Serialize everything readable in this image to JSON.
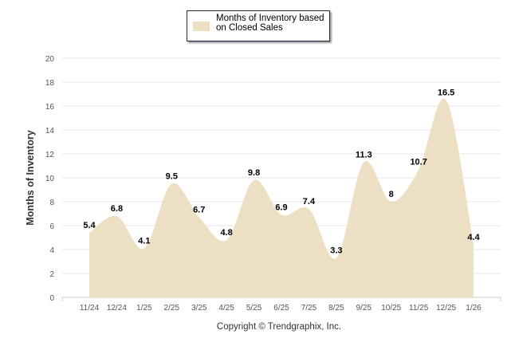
{
  "chart_data": {
    "type": "area",
    "title": "",
    "legend": {
      "label": "Months of Inventory based on Closed Sales",
      "placement": "top-center"
    },
    "categories": [
      "11/24",
      "12/24",
      "1/25",
      "2/25",
      "3/25",
      "4/25",
      "5/25",
      "6/25",
      "7/25",
      "8/25",
      "9/25",
      "10/25",
      "11/25",
      "12/25",
      "1/26"
    ],
    "series": [
      {
        "name": "Months of Inventory based on Closed Sales",
        "values": [
          5.4,
          6.8,
          4.1,
          9.5,
          6.7,
          4.8,
          9.8,
          6.9,
          7.4,
          3.3,
          11.3,
          8,
          10.7,
          16.5,
          4.4
        ]
      }
    ],
    "data_labels": [
      "5.4",
      "6.8",
      "4.1",
      "9.5",
      "6.7",
      "4.8",
      "9.8",
      "6.9",
      "7.4",
      "3.3",
      "11.3",
      "8",
      "10.7",
      "16.5",
      "4.4"
    ],
    "xlabel": "",
    "ylabel": "Months of Inventory",
    "ylim": [
      0,
      20
    ],
    "yticks": [
      "0",
      "2",
      "4",
      "6",
      "8",
      "10",
      "12",
      "14",
      "16",
      "18",
      "20"
    ],
    "grid": true,
    "fill_color": "#ecdfc4"
  },
  "footer": {
    "copyright": "Copyright © Trendgraphix, Inc."
  }
}
